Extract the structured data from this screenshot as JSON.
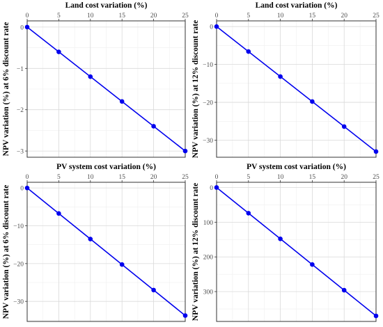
{
  "colors": {
    "series": "#0000ee",
    "frame": "#333333",
    "grid": "#d9d9d9"
  },
  "chart_data": [
    {
      "type": "line",
      "title": "Land cost variation (%)",
      "xlabel": "Land cost variation (%)",
      "ylabel": "NPV variation (%) at 6% discount rate",
      "x": [
        0,
        5,
        10,
        15,
        20,
        25
      ],
      "y": [
        0,
        -0.6,
        -1.2,
        -1.8,
        -2.4,
        -3.0
      ],
      "xlim": [
        0,
        25
      ],
      "ylim": [
        -3.15,
        0.15
      ],
      "xticks": [
        0,
        5,
        10,
        15,
        20,
        25
      ],
      "yticks": [
        0,
        -1,
        -2,
        -3
      ],
      "x_axis_position": "top",
      "grid": true
    },
    {
      "type": "line",
      "title": "Land cost variation (%)",
      "xlabel": "Land cost variation (%)",
      "ylabel": "NPV variation (%) at 12% discount rate",
      "x": [
        0,
        5,
        10,
        15,
        20,
        25
      ],
      "y": [
        0,
        -6.6,
        -13.2,
        -19.8,
        -26.4,
        -33.0
      ],
      "xlim": [
        0,
        25
      ],
      "ylim": [
        -34.5,
        1.5
      ],
      "xticks": [
        0,
        5,
        10,
        15,
        20,
        25
      ],
      "yticks": [
        0,
        -10,
        -20,
        -30
      ],
      "x_axis_position": "top",
      "grid": true
    },
    {
      "type": "line",
      "title": "PV system cost variation (%)",
      "xlabel": "PV system cost variation (%)",
      "ylabel": "NPV variation (%) at 6% discount rate",
      "x": [
        0,
        5,
        10,
        15,
        20,
        25
      ],
      "y": [
        0,
        -6.75,
        -13.5,
        -20.25,
        -27.0,
        -33.75
      ],
      "xlim": [
        0,
        25
      ],
      "ylim": [
        -35.3,
        1.5
      ],
      "xticks": [
        0,
        5,
        10,
        15,
        20,
        25
      ],
      "yticks": [
        0,
        -10,
        -20,
        -30
      ],
      "x_axis_position": "top",
      "grid": true
    },
    {
      "type": "line",
      "title": "PV system cost variation (%)",
      "xlabel": "PV system cost variation (%)",
      "ylabel": "NPV variation (%) at 12% discount rate",
      "x": [
        0,
        5,
        10,
        15,
        20,
        25
      ],
      "y": [
        0,
        74,
        148,
        222,
        296,
        370
      ],
      "xlim": [
        0,
        25
      ],
      "ylim": [
        386,
        -15
      ],
      "xticks": [
        0,
        5,
        10,
        15,
        20,
        25
      ],
      "yticks": [
        0,
        100,
        200,
        300
      ],
      "x_axis_position": "top",
      "y_reversed": true,
      "grid": true
    }
  ]
}
